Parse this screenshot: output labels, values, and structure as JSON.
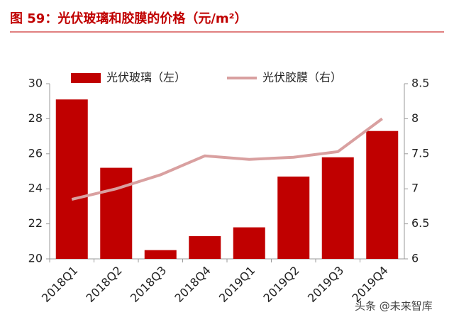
{
  "chart_data": {
    "type": "bar",
    "title": "图 59：光伏玻璃和胶膜的价格（元/m²）",
    "categories": [
      "2018Q1",
      "2018Q2",
      "2018Q3",
      "2018Q4",
      "2019Q1",
      "2019Q2",
      "2019Q3",
      "2019Q4"
    ],
    "series": [
      {
        "name": "光伏玻璃（左）",
        "color": "#c00000",
        "type": "bar",
        "values": [
          29.1,
          25.2,
          20.5,
          21.3,
          21.8,
          24.7,
          25.8,
          27.3
        ]
      },
      {
        "name": "光伏胶膜（右）",
        "color": "#d9a0a0",
        "type": "line",
        "axis": "y2",
        "values": [
          6.85,
          7.0,
          7.2,
          7.47,
          7.42,
          7.45,
          7.53,
          8.0
        ]
      }
    ],
    "ylim": [
      20,
      30
    ],
    "yticks": [
      20,
      22,
      24,
      26,
      28,
      30
    ],
    "y2lim": [
      6,
      8.5
    ],
    "y2ticks": [
      6,
      6.5,
      7,
      7.5,
      8,
      8.5
    ],
    "legend": "top",
    "watermark": "头条 @未来智库"
  }
}
